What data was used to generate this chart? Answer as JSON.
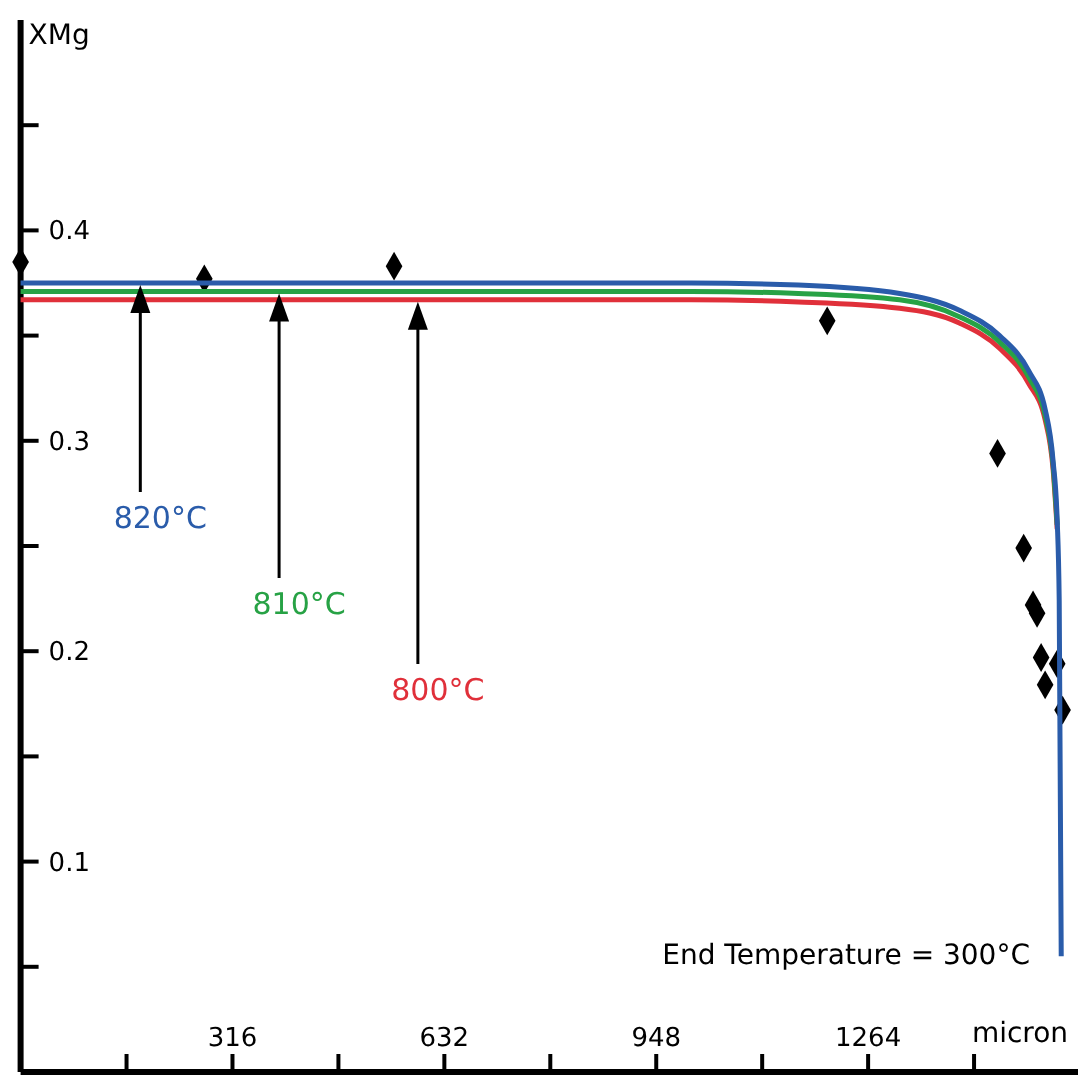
{
  "chart_data": {
    "type": "line",
    "ylabel": "XMg",
    "xlabel": "micron",
    "xlim": [
      0,
      1580
    ],
    "ylim": [
      0,
      0.5
    ],
    "xticks": [
      {
        "value": 0,
        "label": null
      },
      {
        "value": 158,
        "label": null
      },
      316,
      {
        "value": 474,
        "label": null
      },
      632,
      {
        "value": 790,
        "label": null
      },
      948,
      {
        "value": 1106,
        "label": null
      },
      1264,
      {
        "value": 1422,
        "label": null
      },
      {
        "value": 1580,
        "label": null
      }
    ],
    "yticks": [
      {
        "value": 0.05,
        "label": null
      },
      0.1,
      {
        "value": 0.15,
        "label": null
      },
      0.2,
      {
        "value": 0.25,
        "label": null
      },
      0.3,
      {
        "value": 0.35,
        "label": null
      },
      0.4,
      {
        "value": 0.45,
        "label": null
      }
    ],
    "grid": false,
    "marker": "none",
    "line_style": "solid",
    "series": [
      {
        "name": "820°C",
        "color": "#2a5caa",
        "x": [
          0,
          1000,
          1160,
          1311,
          1400,
          1460,
          1504,
          1528,
          1540,
          1546,
          1549,
          1552
        ],
        "values": [
          0.375,
          0.375,
          0.374,
          0.37,
          0.362,
          0.35,
          0.333,
          0.315,
          0.29,
          0.262,
          0.224,
          0.055
        ]
      },
      {
        "name": "810°C",
        "color": "#27a245",
        "x": [
          0,
          1000,
          1160,
          1311,
          1400,
          1460,
          1504,
          1528,
          1540,
          1546
        ],
        "values": [
          0.371,
          0.371,
          0.37,
          0.367,
          0.359,
          0.347,
          0.33,
          0.312,
          0.288,
          0.26
        ]
      },
      {
        "name": "800°C",
        "color": "#e0303a",
        "x": [
          0,
          1000,
          1160,
          1311,
          1400,
          1460,
          1504,
          1528,
          1540,
          1546
        ],
        "values": [
          0.367,
          0.367,
          0.366,
          0.363,
          0.356,
          0.344,
          0.327,
          0.31,
          0.286,
          0.258
        ]
      },
      {
        "type": "scatter",
        "color": "#000000",
        "marker": "diamond",
        "x": [
          0,
          274,
          557,
          1203,
          1457,
          1496,
          1510,
          1516,
          1522,
          1546,
          1528,
          1554
        ],
        "values": [
          0.385,
          0.377,
          0.383,
          0.357,
          0.294,
          0.249,
          0.222,
          0.218,
          0.197,
          0.194,
          0.184,
          0.172
        ]
      }
    ],
    "annotations": [
      "End Temperature = 300°C"
    ]
  }
}
